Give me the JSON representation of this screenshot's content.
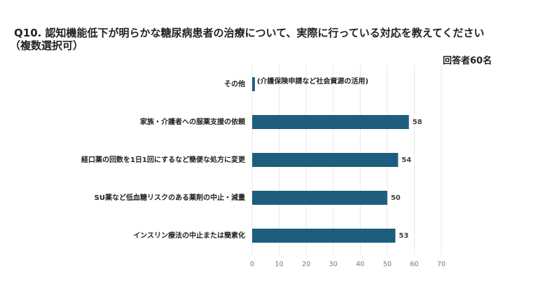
{
  "chart_data": {
    "type": "bar",
    "orientation": "horizontal",
    "title": "Q10. 認知機能低下が明らかな糖尿病患者の治療について、実際に行っている対応を教えてください",
    "subtitle": "（複数選択可）",
    "respondents": "回答者60名",
    "categories": [
      "その他",
      "家族・介護者への服薬支援の依頼",
      "経口薬の回数を1日1回にするなど簡便な処方に変更",
      "SU薬など低血糖リスクのある薬剤の中止・減量",
      "インスリン療法の中止または簡素化"
    ],
    "values": [
      1,
      58,
      54,
      50,
      53
    ],
    "notes": [
      "(介護保険申請など社会資源の活用)",
      null,
      null,
      null,
      null
    ],
    "color": "#1d5e7e",
    "xlim": [
      0,
      70
    ],
    "xticks": [
      0,
      10,
      20,
      30,
      40,
      50,
      60,
      70
    ],
    "grid": true
  }
}
